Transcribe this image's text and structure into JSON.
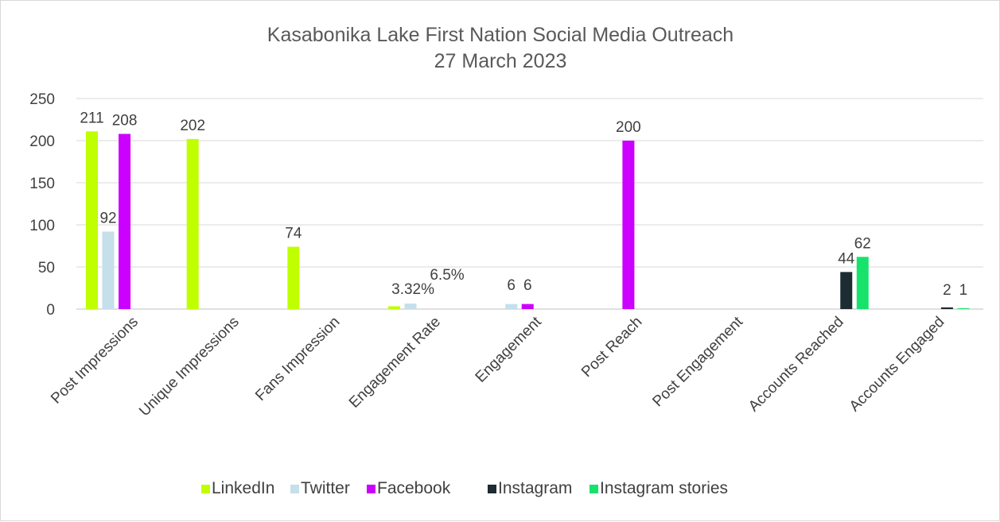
{
  "chart_data": {
    "type": "bar",
    "title": "Kasabonika Lake First Nation Social Media Outreach",
    "subtitle": "27 March 2023",
    "xlabel": "",
    "ylabel": "",
    "ylim": [
      0,
      250
    ],
    "yticks": [
      0,
      50,
      100,
      150,
      200,
      250
    ],
    "grid": true,
    "legend_position": "bottom",
    "categories": [
      "Post Impressions",
      "Unique Impressions",
      "Fans Impression",
      "Engagement Rate",
      "Engagement",
      "Post Reach",
      "Post Engagement",
      "Accounts Reached",
      "Accounts Engaged"
    ],
    "series": [
      {
        "name": "LinkedIn",
        "color": "#bfff00",
        "values": [
          211,
          202,
          74,
          3.32,
          null,
          null,
          null,
          null,
          null
        ],
        "labels": [
          "211",
          "202",
          "74",
          "3.32%",
          "",
          "",
          "",
          "",
          ""
        ]
      },
      {
        "name": "Twitter",
        "color": "#c5dfeb",
        "values": [
          92,
          null,
          null,
          6.5,
          6,
          null,
          null,
          null,
          null
        ],
        "labels": [
          "92",
          "",
          "",
          "6.5%",
          "6",
          "",
          "",
          "",
          ""
        ]
      },
      {
        "name": "Facebook",
        "color": "#cc00ff",
        "values": [
          208,
          null,
          null,
          null,
          6,
          200,
          null,
          null,
          null
        ],
        "labels": [
          "208",
          "",
          "",
          "",
          "6",
          "200",
          "",
          "",
          ""
        ]
      },
      {
        "name": "Instagram",
        "color": "#1d2b33",
        "values": [
          null,
          null,
          null,
          null,
          null,
          null,
          null,
          44,
          2
        ],
        "labels": [
          "",
          "",
          "",
          "",
          "",
          "",
          "",
          "44",
          "2"
        ]
      },
      {
        "name": "Instagram stories",
        "color": "#17e36c",
        "values": [
          null,
          null,
          null,
          null,
          null,
          null,
          null,
          62,
          1
        ],
        "labels": [
          "",
          "",
          "",
          "",
          "",
          "",
          "",
          "62",
          "1"
        ]
      }
    ]
  }
}
